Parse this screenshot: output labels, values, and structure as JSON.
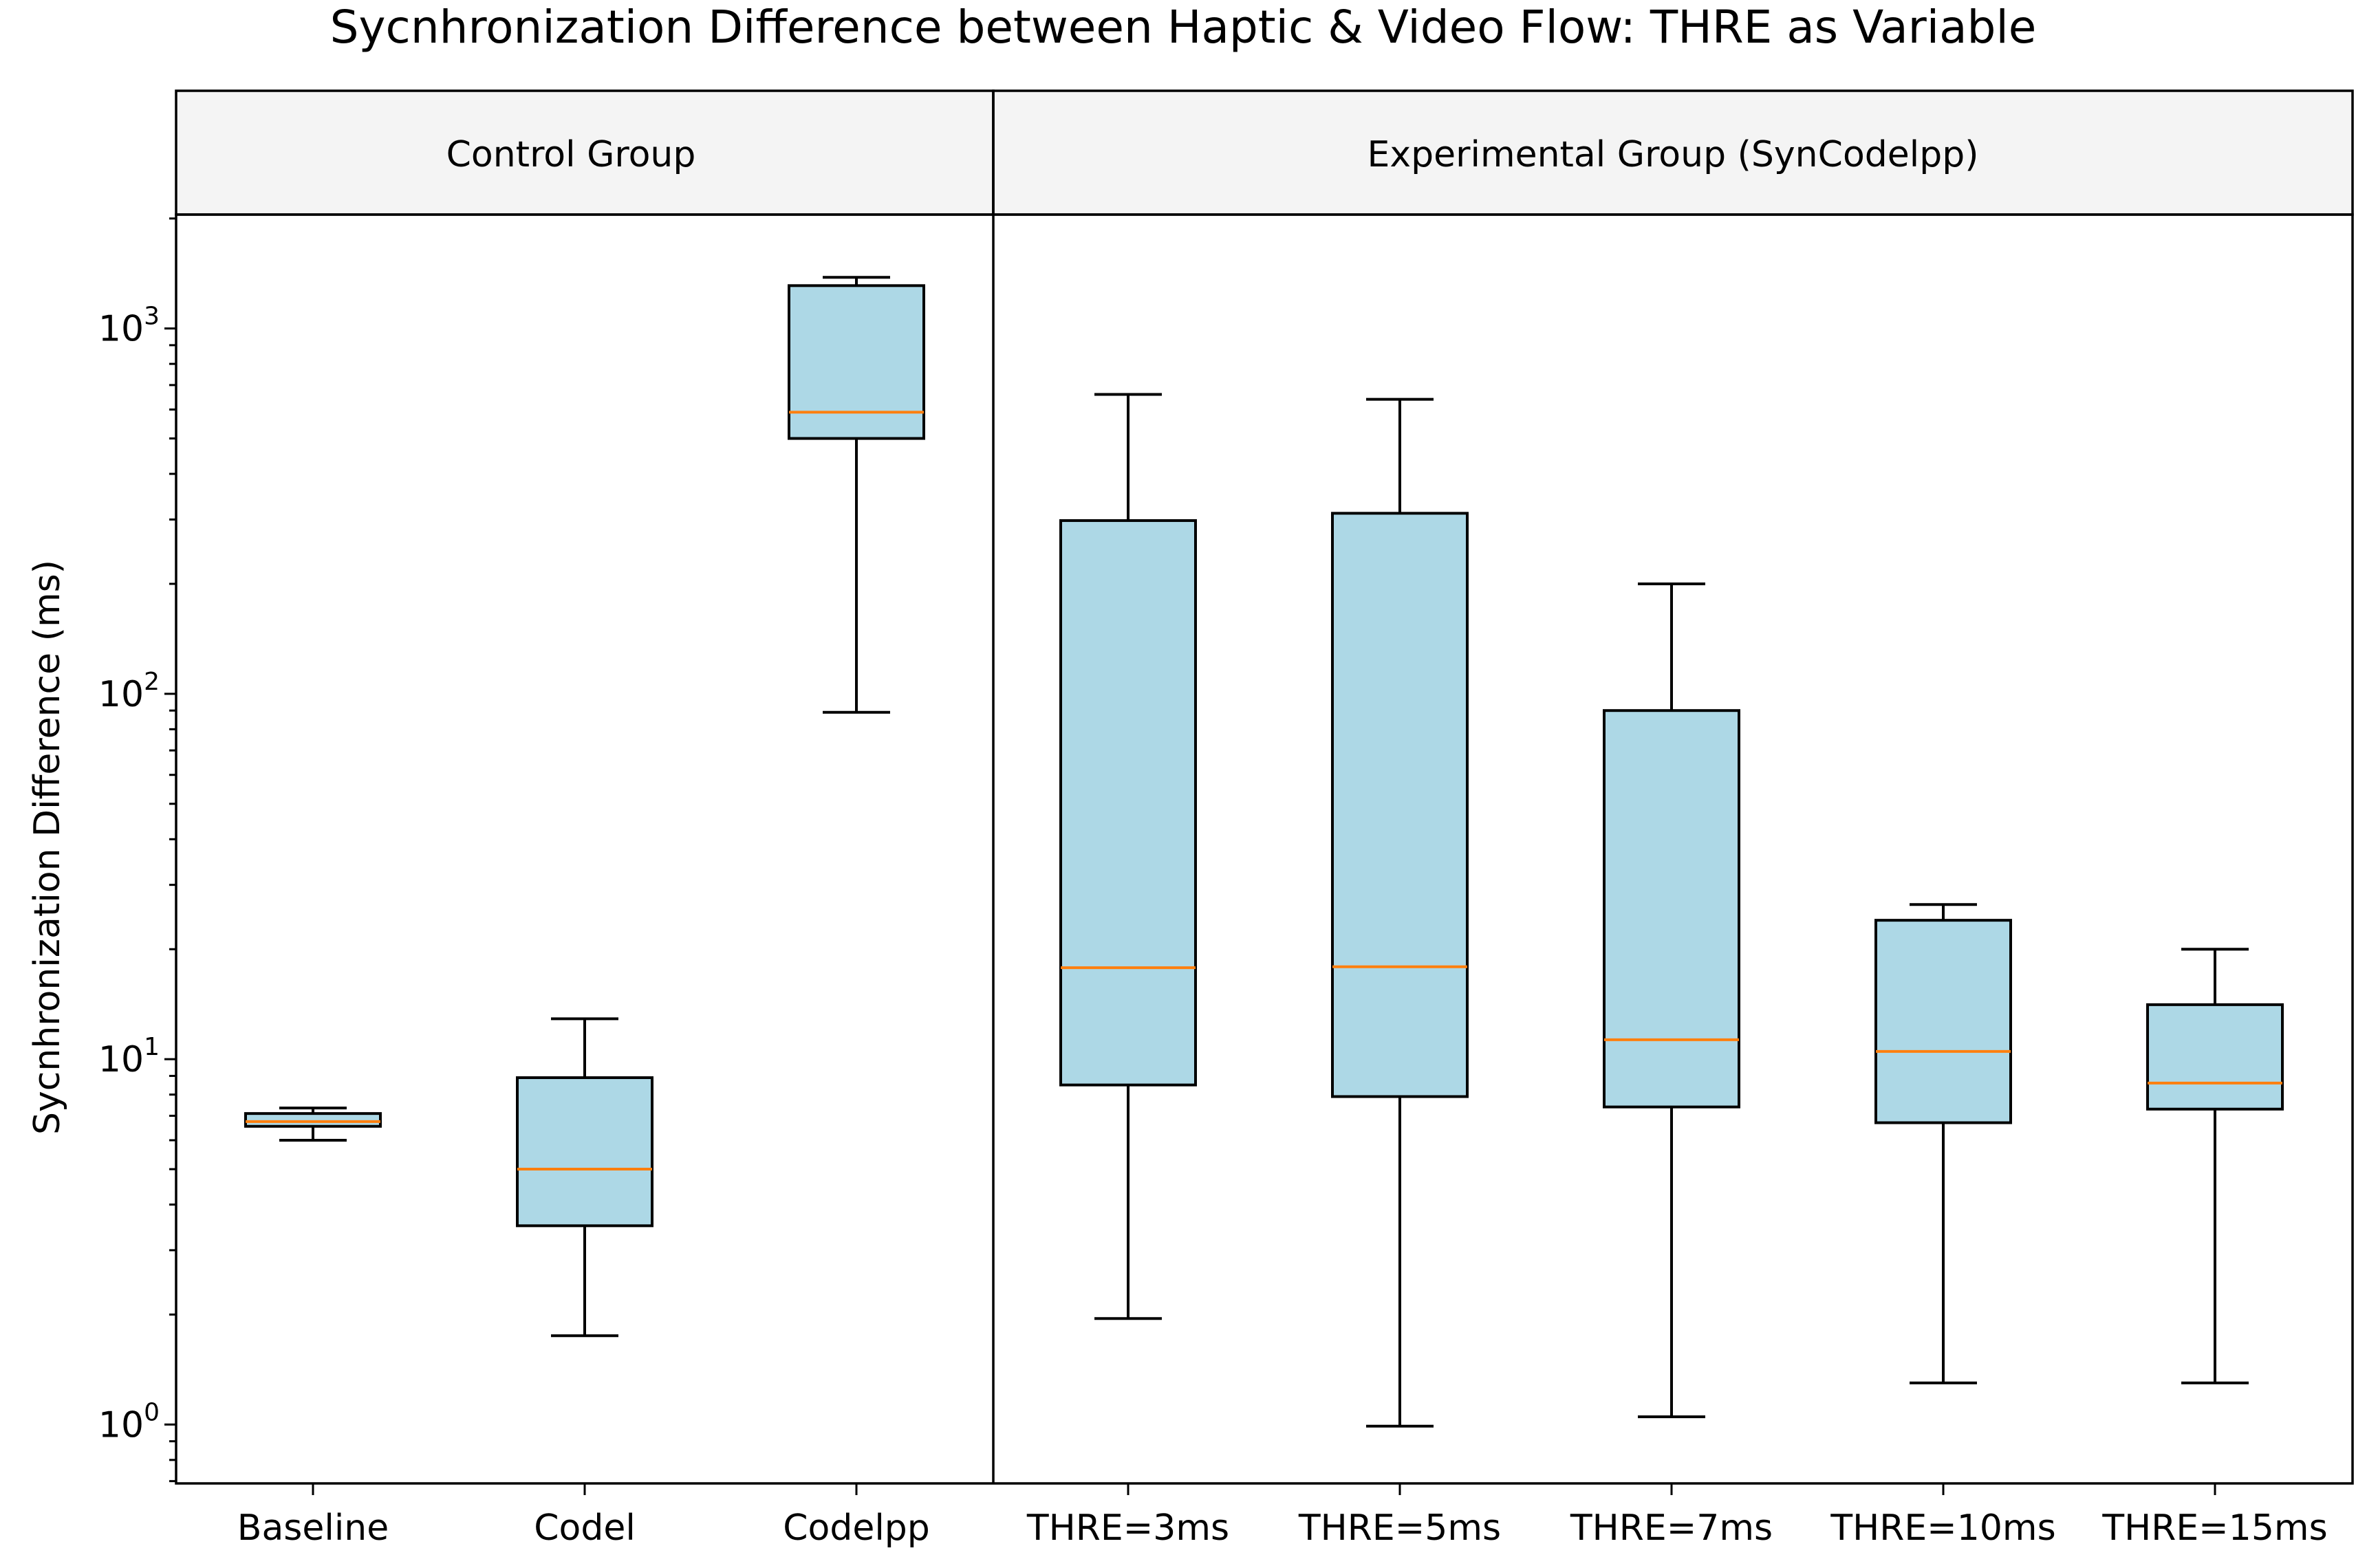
{
  "chart_data": {
    "type": "box",
    "title": "Sycnhronization Difference between Haptic & Video Flow: THRE as Variable",
    "ylabel": "Sycnhronization Difference (ms)",
    "yscale": "log",
    "ylim": [
      0.69,
      2050
    ],
    "yticks": [
      {
        "value": 1,
        "base": "10",
        "exp": "0"
      },
      {
        "value": 10,
        "base": "10",
        "exp": "1"
      },
      {
        "value": 100,
        "base": "10",
        "exp": "2"
      },
      {
        "value": 1000,
        "base": "10",
        "exp": "3"
      }
    ],
    "groups": [
      {
        "label": "Control Group",
        "categories": [
          "Baseline",
          "Codel",
          "Codelpp"
        ]
      },
      {
        "label": "Experimental Group (SynCodelpp)",
        "categories": [
          "THRE=3ms",
          "THRE=5ms",
          "THRE=7ms",
          "THRE=10ms",
          "THRE=15ms"
        ]
      }
    ],
    "boxes": [
      {
        "category": "Baseline",
        "whislo": 6.0,
        "q1": 6.55,
        "median": 6.75,
        "q3": 7.1,
        "whishi": 7.35
      },
      {
        "category": "Codel",
        "whislo": 1.75,
        "q1": 3.5,
        "median": 5.0,
        "q3": 8.9,
        "whishi": 12.9
      },
      {
        "category": "Codelpp",
        "whislo": 89,
        "q1": 500,
        "median": 590,
        "q3": 1310,
        "whishi": 1380
      },
      {
        "category": "THRE=3ms",
        "whislo": 1.95,
        "q1": 8.5,
        "median": 17.8,
        "q3": 298,
        "whishi": 660
      },
      {
        "category": "THRE=5ms",
        "whislo": 0.99,
        "q1": 7.9,
        "median": 17.9,
        "q3": 312,
        "whishi": 640
      },
      {
        "category": "THRE=7ms",
        "whislo": 1.05,
        "q1": 7.4,
        "median": 11.3,
        "q3": 90,
        "whishi": 200
      },
      {
        "category": "THRE=10ms",
        "whislo": 1.3,
        "q1": 6.7,
        "median": 10.5,
        "q3": 24,
        "whishi": 26.5
      },
      {
        "category": "THRE=15ms",
        "whislo": 1.3,
        "q1": 7.3,
        "median": 8.6,
        "q3": 14.1,
        "whishi": 20
      }
    ],
    "colors": {
      "box_fill": "#add8e6",
      "median": "#ff7f0e",
      "edge": "#000000",
      "header_bg": "#f4f4f4"
    }
  }
}
